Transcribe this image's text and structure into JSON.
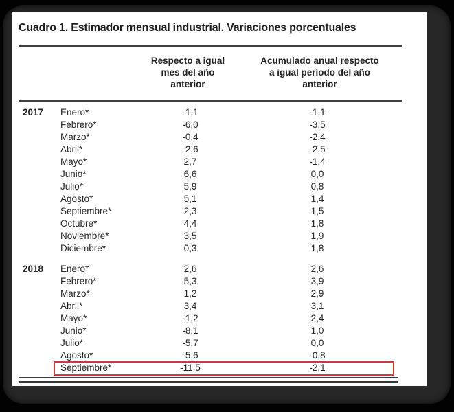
{
  "table": {
    "title": "Cuadro 1. Estimador mensual industrial. Variaciones porcentuales",
    "col1_header_lines": [
      "Respecto a igual",
      "mes del año",
      "anterior"
    ],
    "col2_header_lines": [
      "Acumulado anual respecto",
      "a igual período del año",
      "anterior"
    ],
    "highlight_color": "#cb3a33",
    "groups": [
      {
        "year": "2017",
        "rows": [
          {
            "month": "Enero*",
            "monthly": "-1,1",
            "accumulated": "-1,1"
          },
          {
            "month": "Febrero*",
            "monthly": "-6,0",
            "accumulated": "-3,5"
          },
          {
            "month": "Marzo*",
            "monthly": "-0,4",
            "accumulated": "-2,4"
          },
          {
            "month": "Abril*",
            "monthly": "-2,6",
            "accumulated": "-2,5"
          },
          {
            "month": "Mayo*",
            "monthly": "2,7",
            "accumulated": "-1,4"
          },
          {
            "month": "Junio*",
            "monthly": "6,6",
            "accumulated": "0,0"
          },
          {
            "month": "Julio*",
            "monthly": "5,9",
            "accumulated": "0,8"
          },
          {
            "month": "Agosto*",
            "monthly": "5,1",
            "accumulated": "1,4"
          },
          {
            "month": "Septiembre*",
            "monthly": "2,3",
            "accumulated": "1,5"
          },
          {
            "month": "Octubre*",
            "monthly": "4,4",
            "accumulated": "1,8"
          },
          {
            "month": "Noviembre*",
            "monthly": "3,5",
            "accumulated": "1,9"
          },
          {
            "month": "Diciembre*",
            "monthly": "0,3",
            "accumulated": "1,8"
          }
        ]
      },
      {
        "year": "2018",
        "rows": [
          {
            "month": "Enero*",
            "monthly": "2,6",
            "accumulated": "2,6"
          },
          {
            "month": "Febrero*",
            "monthly": "5,3",
            "accumulated": "3,9"
          },
          {
            "month": "Marzo*",
            "monthly": "1,2",
            "accumulated": "2,9"
          },
          {
            "month": "Abril*",
            "monthly": "3,4",
            "accumulated": "3,1"
          },
          {
            "month": "Mayo*",
            "monthly": "-1,2",
            "accumulated": "2,4"
          },
          {
            "month": "Junio*",
            "monthly": "-8,1",
            "accumulated": "1,0"
          },
          {
            "month": "Julio*",
            "monthly": "-5,7",
            "accumulated": "0,0"
          },
          {
            "month": "Agosto*",
            "monthly": "-5,6",
            "accumulated": "-0,8"
          },
          {
            "month": "Septiembre*",
            "monthly": "-11,5",
            "accumulated": "-2,1",
            "highlight": true
          }
        ]
      }
    ]
  }
}
